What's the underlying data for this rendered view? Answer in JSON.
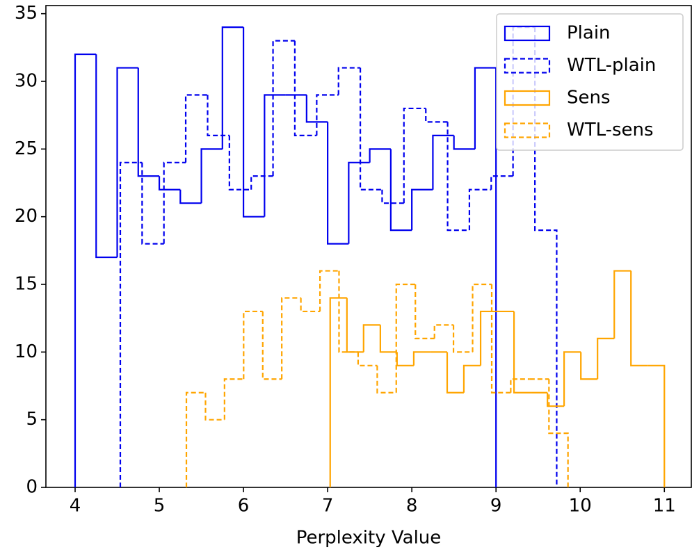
{
  "chart_data": {
    "type": "histogram",
    "xlabel": "Perplexity Value",
    "xlim": [
      3.653,
      11.32
    ],
    "ylim": [
      0,
      35.6
    ],
    "xticks": [
      4,
      5,
      6,
      7,
      8,
      9,
      10,
      11
    ],
    "yticks": [
      0,
      5,
      10,
      15,
      20,
      25,
      30,
      35
    ],
    "grid": false,
    "legend": "upper right",
    "series": [
      {
        "name": "Plain",
        "color": "#0000ee",
        "linestyle": "solid",
        "bins": [
          4,
          4.25,
          4.5,
          4.75,
          5,
          5.25,
          5.5,
          5.75,
          6,
          6.25,
          6.5,
          6.75,
          7,
          7.25,
          7.5,
          7.75,
          8,
          8.25,
          8.5,
          8.75,
          9
        ],
        "values": [
          32,
          17,
          31,
          23,
          22,
          21,
          25,
          34,
          20,
          29,
          29,
          27,
          18,
          24,
          25,
          19,
          22,
          26,
          25,
          31
        ]
      },
      {
        "name": "WTL-plain",
        "color": "#0000ee",
        "linestyle": "dashed",
        "bins": [
          4.537,
          4.796,
          5.055,
          5.314,
          5.574,
          5.833,
          6.092,
          6.351,
          6.61,
          6.87,
          7.129,
          7.388,
          7.647,
          7.906,
          8.166,
          8.425,
          8.684,
          8.943,
          9.202,
          9.462,
          9.721
        ],
        "values": [
          24,
          18,
          24,
          29,
          26,
          22,
          23,
          33,
          26,
          29,
          31,
          22,
          21,
          28,
          27,
          19,
          22,
          23,
          34,
          19
        ]
      },
      {
        "name": "Sens",
        "color": "#ffa500",
        "linestyle": "solid",
        "bins": [
          7.03,
          7.229,
          7.427,
          7.626,
          7.824,
          8.023,
          8.221,
          8.42,
          8.618,
          8.817,
          9.015,
          9.214,
          9.412,
          9.611,
          9.809,
          10.008,
          10.206,
          10.405,
          10.603,
          10.802,
          11.0
        ],
        "values": [
          14,
          10,
          12,
          10,
          9,
          10,
          10,
          7,
          9,
          13,
          13,
          7,
          7,
          6,
          10,
          8,
          11,
          16,
          9,
          9
        ]
      },
      {
        "name": "WTL-sens",
        "color": "#ffa500",
        "linestyle": "dashed",
        "bins": [
          5.322,
          5.549,
          5.775,
          6.002,
          6.229,
          6.455,
          6.682,
          6.909,
          7.135,
          7.362,
          7.589,
          7.815,
          8.042,
          8.269,
          8.495,
          8.722,
          8.949,
          9.175,
          9.402,
          9.629,
          9.855
        ],
        "values": [
          7,
          5,
          8,
          13,
          8,
          14,
          13,
          16,
          10,
          9,
          7,
          15,
          11,
          12,
          10,
          15,
          7,
          8,
          8,
          4
        ]
      }
    ]
  }
}
